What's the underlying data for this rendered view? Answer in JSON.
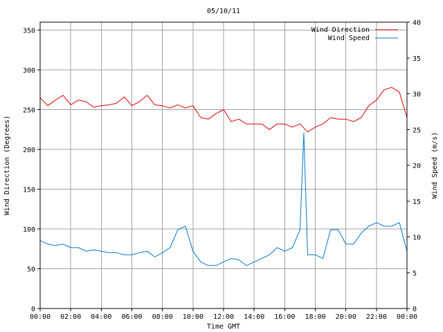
{
  "chart_data": {
    "type": "line",
    "title": "05/10/11",
    "xlabel": "Time GMT",
    "ylabel_left": "Wind Direction (Degrees)",
    "ylabel_right": "Wind Speed (m/s)",
    "x_ticks": [
      "00:00",
      "02:00",
      "04:00",
      "06:00",
      "08:00",
      "10:00",
      "12:00",
      "14:00",
      "16:00",
      "18:00",
      "20:00",
      "22:00",
      "00:00"
    ],
    "xlim_hours": [
      0,
      24
    ],
    "ylim_left": [
      0,
      360
    ],
    "yticks_left": [
      0,
      50,
      100,
      150,
      200,
      250,
      300,
      350
    ],
    "ylim_right": [
      0,
      40
    ],
    "yticks_right": [
      0,
      5,
      10,
      15,
      20,
      25,
      30,
      35,
      40
    ],
    "grid": true,
    "legend_position": "top-right",
    "colors": {
      "wind_direction": "#dd0000",
      "wind_speed": "#0077cc"
    },
    "series": [
      {
        "name": "Wind Direction",
        "axis": "left",
        "x": [
          0,
          0.5,
          1,
          1.5,
          2,
          2.5,
          3,
          3.5,
          4,
          4.5,
          5,
          5.5,
          6,
          6.5,
          7,
          7.5,
          8,
          8.5,
          9,
          9.5,
          10,
          10.5,
          11,
          11.5,
          12,
          12.5,
          13,
          13.5,
          14,
          14.5,
          15,
          15.5,
          16,
          16.5,
          17,
          17.5,
          18,
          18.5,
          19,
          19.5,
          20,
          20.5,
          21,
          21.5,
          22,
          22.5,
          23,
          23.5,
          24
        ],
        "values": [
          265,
          255,
          262,
          268,
          256,
          262,
          260,
          253,
          255,
          256,
          258,
          266,
          255,
          260,
          268,
          256,
          255,
          252,
          256,
          252,
          255,
          240,
          238,
          245,
          250,
          235,
          238,
          232,
          232,
          232,
          225,
          232,
          232,
          228,
          232,
          222,
          228,
          232,
          240,
          238,
          238,
          235,
          240,
          255,
          262,
          275,
          278,
          272,
          240
        ]
      },
      {
        "name": "Wind Speed",
        "axis": "right",
        "x": [
          0,
          0.5,
          1,
          1.5,
          2,
          2.5,
          3,
          3.5,
          4,
          4.5,
          5,
          5.5,
          6,
          6.5,
          7,
          7.5,
          8,
          8.5,
          9,
          9.5,
          10,
          10.5,
          11,
          11.5,
          12,
          12.5,
          13,
          13.5,
          14,
          14.5,
          15,
          15.5,
          16,
          16.5,
          17,
          17.25,
          17.5,
          18,
          18.5,
          19,
          19.5,
          20,
          20.5,
          21,
          21.5,
          22,
          22.5,
          23,
          23.5,
          24
        ],
        "values": [
          9.5,
          9,
          8.8,
          9,
          8.5,
          8.5,
          8,
          8.2,
          8,
          7.8,
          7.8,
          7.5,
          7.5,
          7.8,
          8,
          7.2,
          7.8,
          8.5,
          11,
          11.5,
          8,
          6.5,
          6,
          6,
          6.5,
          7,
          6.8,
          6,
          6.5,
          7,
          7.5,
          8.5,
          8,
          8.5,
          11,
          24.5,
          7.5,
          7.5,
          7,
          11,
          11,
          9,
          9,
          10.5,
          11.5,
          12,
          11.5,
          11.5,
          12,
          8
        ]
      }
    ]
  }
}
